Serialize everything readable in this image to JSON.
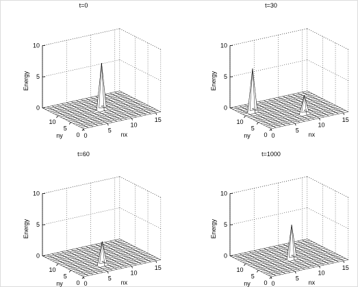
{
  "chart_data": [
    {
      "type": "surface3d",
      "title": "t=0",
      "xlabel": "nx",
      "ylabel": "ny",
      "zlabel": "Energy",
      "xlim": [
        0,
        16
      ],
      "ylim": [
        0,
        16
      ],
      "zlim": [
        0,
        10
      ],
      "xticks": [
        0,
        5,
        10,
        15
      ],
      "yticks": [
        0,
        5,
        10
      ],
      "zticks": [
        0,
        5,
        10
      ],
      "grid": true,
      "peaks": [
        {
          "nx": 8,
          "ny": 8,
          "energy": 7.5
        }
      ]
    },
    {
      "type": "surface3d",
      "title": "t=30",
      "xlabel": "nx",
      "ylabel": "ny",
      "zlabel": "Energy",
      "xlim": [
        0,
        16
      ],
      "ylim": [
        0,
        16
      ],
      "zlim": [
        0,
        10
      ],
      "xticks": [
        0,
        5,
        10,
        15
      ],
      "yticks": [
        0,
        5,
        10
      ],
      "zticks": [
        0,
        5,
        10
      ],
      "grid": true,
      "peaks": [
        {
          "nx": 2,
          "ny": 11,
          "energy": 7.0
        },
        {
          "nx": 9,
          "ny": 4,
          "energy": 3.0
        }
      ]
    },
    {
      "type": "surface3d",
      "title": "t=60",
      "xlabel": "nx",
      "ylabel": "ny",
      "zlabel": "Energy",
      "xlim": [
        0,
        16
      ],
      "ylim": [
        0,
        16
      ],
      "zlim": [
        0,
        10
      ],
      "xticks": [
        0,
        5,
        10,
        15
      ],
      "yticks": [
        0,
        5,
        10
      ],
      "zticks": [
        0,
        5,
        10
      ],
      "grid": true,
      "peaks": [
        {
          "nx": 6,
          "ny": 4,
          "energy": 3.8
        }
      ]
    },
    {
      "type": "surface3d",
      "title": "t=1000",
      "xlabel": "nx",
      "ylabel": "ny",
      "zlabel": "Energy",
      "xlim": [
        0,
        16
      ],
      "ylim": [
        0,
        16
      ],
      "zlim": [
        0,
        10
      ],
      "xticks": [
        0,
        5,
        10,
        15
      ],
      "yticks": [
        0,
        5,
        10
      ],
      "zticks": [
        0,
        5,
        10
      ],
      "grid": true,
      "peaks": [
        {
          "nx": 8,
          "ny": 7,
          "energy": 5.5
        }
      ]
    }
  ]
}
